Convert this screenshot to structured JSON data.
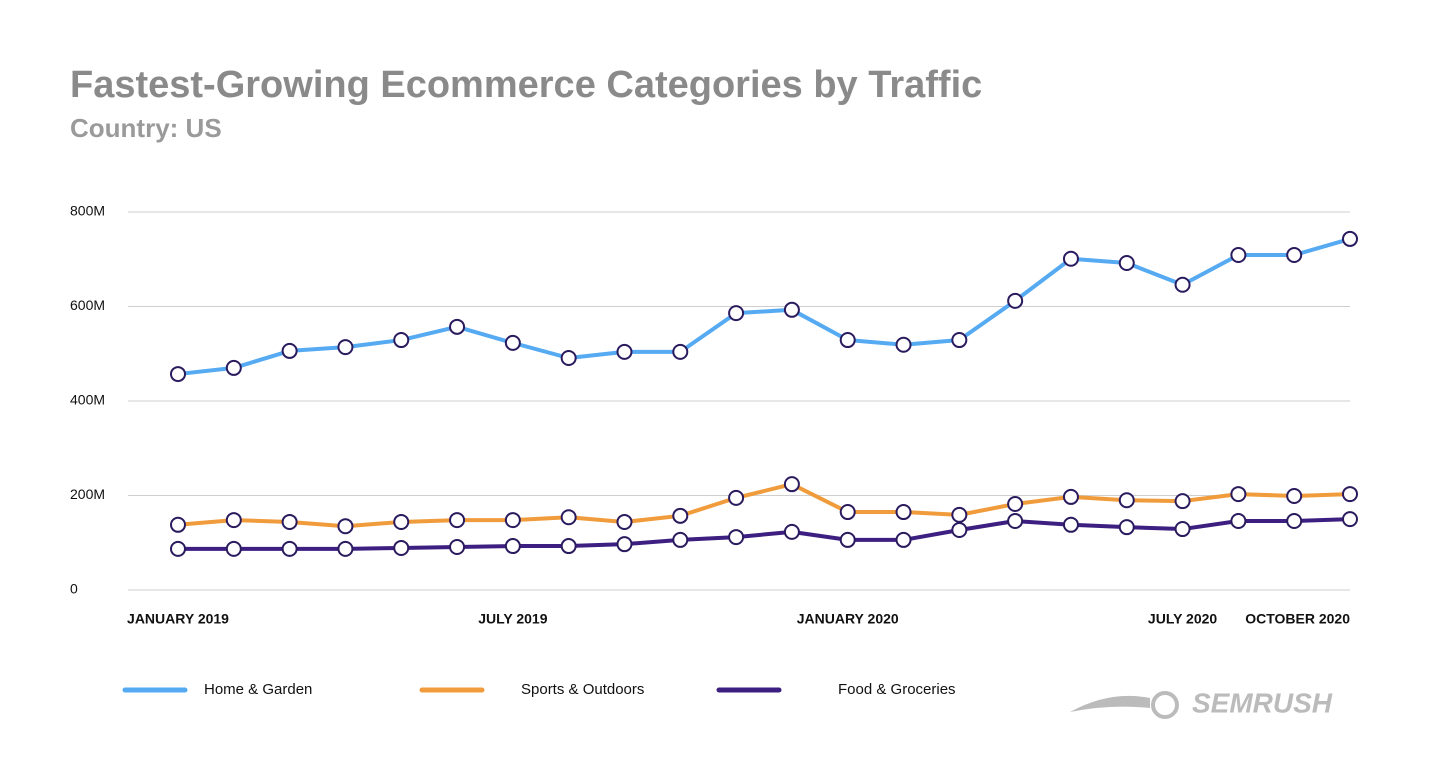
{
  "chart_data": {
    "type": "line",
    "title": "Fastest-Growing Ecommerce Categories by Traffic",
    "subtitle": "Country: US",
    "categories": [
      "JANUARY 2019",
      null,
      null,
      null,
      null,
      null,
      "JULY 2019",
      null,
      null,
      null,
      null,
      null,
      "JANUARY 2020",
      null,
      null,
      null,
      null,
      null,
      "JULY 2020",
      null,
      null,
      "OCTOBER 2020"
    ],
    "series": [
      {
        "name": "Home & Garden",
        "color": "#55aaf2",
        "values": [
          457,
          470,
          506,
          514,
          529,
          557,
          523,
          491,
          504,
          504,
          586,
          593,
          529,
          519,
          529,
          612,
          701,
          692,
          646,
          709,
          709,
          743
        ]
      },
      {
        "name": "Sports & Outdoors",
        "color": "#f09c3c",
        "values": [
          138,
          148,
          144,
          135,
          144,
          148,
          148,
          154,
          144,
          157,
          195,
          224,
          165,
          165,
          159,
          182,
          197,
          190,
          188,
          203,
          199,
          203
        ]
      },
      {
        "name": "Food & Groceries",
        "color": "#3c1f80",
        "values": [
          87,
          87,
          87,
          87,
          89,
          91,
          93,
          93,
          97,
          106,
          112,
          123,
          106,
          106,
          127,
          146,
          138,
          133,
          129,
          146,
          146,
          150
        ]
      }
    ],
    "ylim": [
      0,
      800
    ],
    "yticks": [
      0,
      {
        "value": 200,
        "label": "200M"
      },
      {
        "value": 400,
        "label": "400M"
      },
      {
        "value": 600,
        "label": "600M"
      },
      {
        "value": 800,
        "label": "800M"
      }
    ],
    "grid": true,
    "legend": "bottom",
    "brand": "SEMRUSH"
  }
}
